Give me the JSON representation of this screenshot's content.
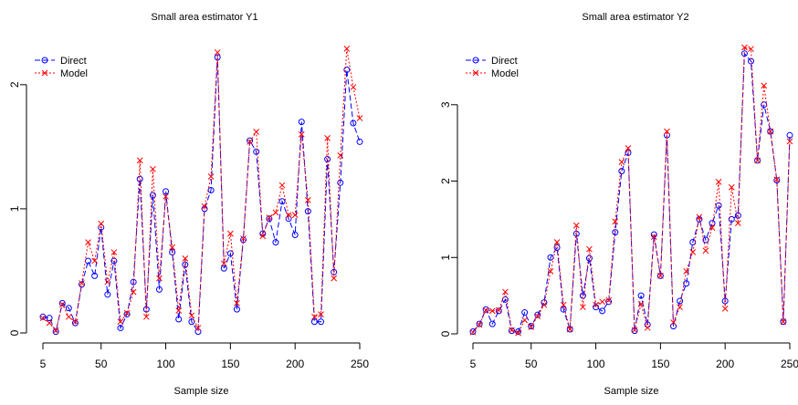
{
  "chart_data": [
    {
      "type": "line",
      "title": "Small area estimator Y1",
      "xlabel": "Sample size",
      "ylabel": "",
      "xlim": [
        5,
        250
      ],
      "ylim": [
        0,
        2.3
      ],
      "xticks": [
        "5",
        "50",
        "100",
        "150",
        "200",
        "250"
      ],
      "yticks": [
        "0",
        "1",
        "2"
      ],
      "grid": false,
      "legend": {
        "position": "top-left",
        "entries": [
          "Direct",
          "Model"
        ]
      },
      "x": [
        5,
        10,
        15,
        20,
        25,
        30,
        35,
        40,
        45,
        50,
        55,
        60,
        65,
        70,
        75,
        80,
        85,
        90,
        95,
        100,
        105,
        110,
        115,
        120,
        125,
        130,
        135,
        140,
        145,
        150,
        155,
        160,
        165,
        170,
        175,
        180,
        185,
        190,
        195,
        200,
        205,
        210,
        215,
        220,
        225,
        230,
        235,
        240,
        245,
        250
      ],
      "series": [
        {
          "name": "Direct",
          "color": "#0000ff",
          "marker": "circle",
          "line": "dashed",
          "values": [
            0.13,
            0.12,
            0.01,
            0.24,
            0.2,
            0.08,
            0.39,
            0.58,
            0.46,
            0.85,
            0.31,
            0.58,
            0.04,
            0.15,
            0.41,
            1.24,
            0.19,
            1.11,
            0.35,
            1.14,
            0.65,
            0.11,
            0.55,
            0.09,
            0.01,
            1.0,
            1.15,
            2.22,
            0.52,
            0.64,
            0.19,
            0.75,
            1.55,
            1.46,
            0.8,
            0.92,
            0.73,
            1.06,
            0.92,
            0.79,
            1.7,
            0.98,
            0.09,
            0.09,
            1.4,
            0.49,
            1.21,
            2.12,
            1.69,
            1.54
          ]
        },
        {
          "name": "Model",
          "color": "#ff0000",
          "marker": "x",
          "line": "dotted",
          "values": [
            0.12,
            0.08,
            0.02,
            0.23,
            0.13,
            0.09,
            0.4,
            0.73,
            0.58,
            0.88,
            0.41,
            0.65,
            0.09,
            0.16,
            0.33,
            1.39,
            0.13,
            1.32,
            0.44,
            1.1,
            0.69,
            0.18,
            0.6,
            0.14,
            0.04,
            1.02,
            1.26,
            2.26,
            0.56,
            0.8,
            0.24,
            0.76,
            1.54,
            1.62,
            0.78,
            0.93,
            0.97,
            1.19,
            0.95,
            0.95,
            1.6,
            1.07,
            0.13,
            0.15,
            1.57,
            0.44,
            1.43,
            2.29,
            1.98,
            1.73
          ]
        }
      ]
    },
    {
      "type": "line",
      "title": "Small area estimator Y2",
      "xlabel": "Sample size",
      "ylabel": "",
      "xlim": [
        5,
        250
      ],
      "ylim": [
        0,
        3.75
      ],
      "xticks": [
        "5",
        "50",
        "100",
        "150",
        "200",
        "250"
      ],
      "yticks": [
        "0",
        "1",
        "2",
        "3"
      ],
      "grid": false,
      "legend": {
        "position": "top-left",
        "entries": [
          "Direct",
          "Model"
        ]
      },
      "x": [
        5,
        10,
        15,
        20,
        25,
        30,
        35,
        40,
        45,
        50,
        55,
        60,
        65,
        70,
        75,
        80,
        85,
        90,
        95,
        100,
        105,
        110,
        115,
        120,
        125,
        130,
        135,
        140,
        145,
        150,
        155,
        160,
        165,
        170,
        175,
        180,
        185,
        190,
        195,
        200,
        205,
        210,
        215,
        220,
        225,
        230,
        235,
        240,
        245,
        250
      ],
      "series": [
        {
          "name": "Direct",
          "color": "#0000ff",
          "marker": "circle",
          "line": "dashed",
          "values": [
            0.03,
            0.13,
            0.32,
            0.13,
            0.3,
            0.45,
            0.04,
            0.03,
            0.28,
            0.1,
            0.25,
            0.41,
            1.0,
            1.13,
            0.32,
            0.06,
            1.31,
            0.5,
            0.99,
            0.35,
            0.3,
            0.42,
            1.33,
            2.13,
            2.37,
            0.04,
            0.5,
            0.12,
            1.3,
            0.76,
            2.6,
            0.1,
            0.43,
            0.66,
            1.2,
            1.5,
            1.23,
            1.45,
            1.68,
            0.43,
            1.5,
            1.55,
            3.67,
            3.57,
            2.27,
            3.0,
            2.65,
            2.01,
            0.16,
            2.6
          ]
        },
        {
          "name": "Model",
          "color": "#ff0000",
          "marker": "x",
          "line": "dotted",
          "values": [
            0.02,
            0.12,
            0.31,
            0.3,
            0.31,
            0.55,
            0.05,
            0.01,
            0.18,
            0.09,
            0.23,
            0.38,
            0.82,
            1.2,
            0.38,
            0.06,
            1.42,
            0.35,
            1.11,
            0.38,
            0.42,
            0.44,
            1.47,
            2.25,
            2.43,
            0.05,
            0.39,
            0.08,
            1.27,
            0.76,
            2.65,
            0.15,
            0.35,
            0.82,
            1.07,
            1.53,
            1.09,
            1.39,
            1.99,
            0.33,
            1.92,
            1.45,
            3.75,
            3.73,
            2.27,
            3.25,
            2.65,
            2.02,
            0.16,
            2.52
          ]
        }
      ]
    }
  ]
}
